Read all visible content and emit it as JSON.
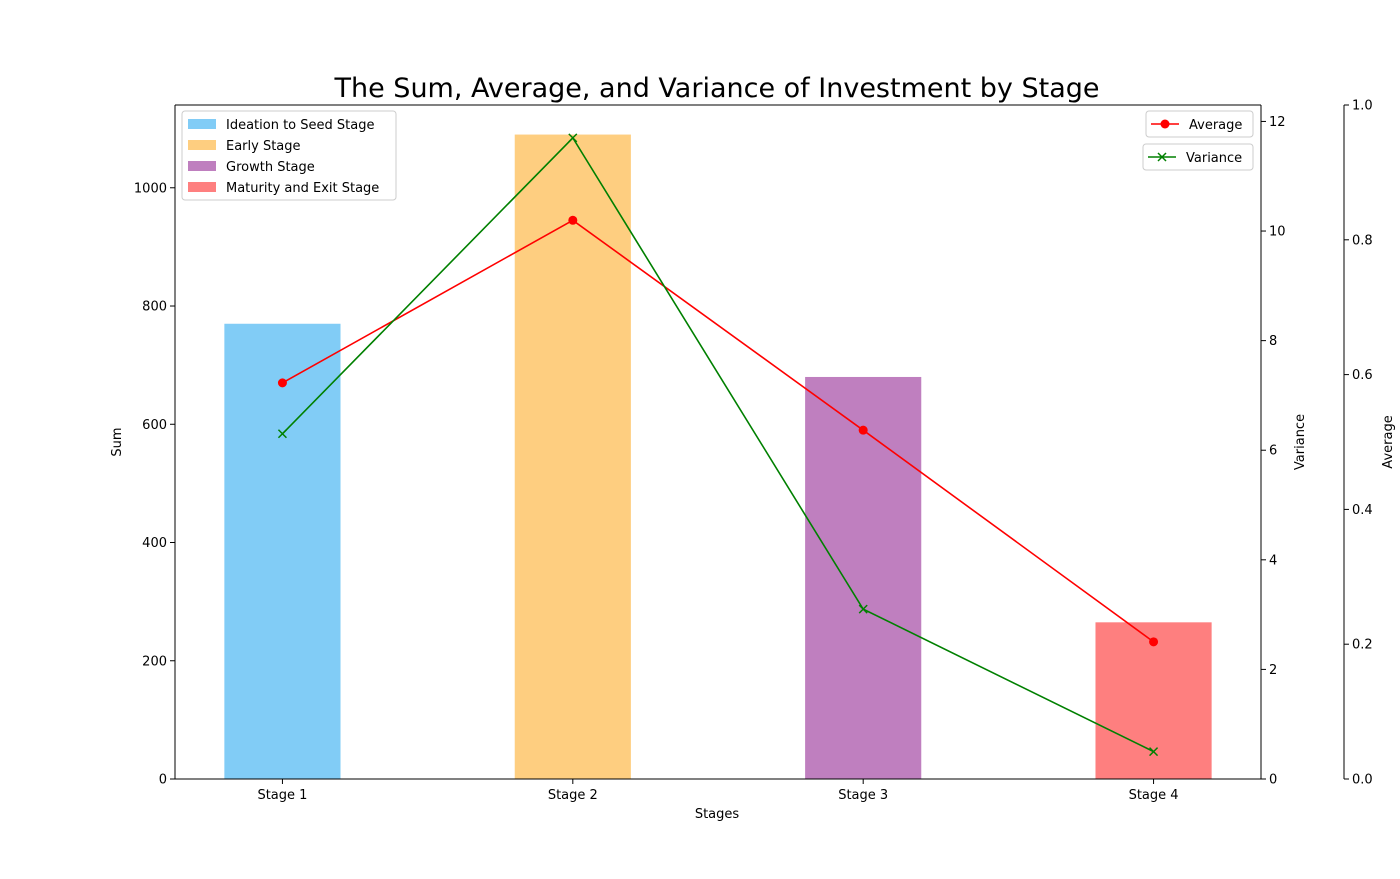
{
  "chart_data": {
    "type": "bar",
    "title": "The Sum, Average, and Variance of Investment by Stage",
    "xlabel": "Stages",
    "ylabel": "Sum",
    "y2label": "Variance",
    "y3label": "Average",
    "categories": [
      "Stage 1",
      "Stage 2",
      "Stage 3",
      "Stage 4"
    ],
    "bar_series": [
      {
        "name": "Ideation to Seed Stage",
        "value": 770,
        "color": "#81CCF6"
      },
      {
        "name": "Early Stage",
        "value": 1090,
        "color": "#FECE80"
      },
      {
        "name": "Growth Stage",
        "value": 680,
        "color": "#BF7FBF"
      },
      {
        "name": "Maturity and Exit Stage",
        "value": 265,
        "color": "#FE7F7F"
      }
    ],
    "line_series": [
      {
        "name": "Average",
        "axis": "left",
        "values": [
          670,
          945,
          590,
          232
        ],
        "color": "#FF0000",
        "marker": "circle"
      },
      {
        "name": "Variance",
        "axis": "right",
        "values": [
          6.3,
          11.7,
          3.1,
          0.5
        ],
        "color": "#008000",
        "marker": "x"
      }
    ],
    "ylim": [
      0,
      1140
    ],
    "yticks": [
      0,
      200,
      400,
      600,
      800,
      1000
    ],
    "y2lim": [
      0,
      12.3
    ],
    "y2ticks": [
      0,
      2,
      4,
      6,
      8,
      10,
      12
    ],
    "y3lim": [
      0,
      1.0
    ],
    "y3ticks": [
      "0.0",
      "0.2",
      "0.4",
      "0.6",
      "0.8",
      "1.0"
    ],
    "legend_bars_position": "upper-left",
    "legend_lines_position": "upper-right",
    "grid": false
  }
}
